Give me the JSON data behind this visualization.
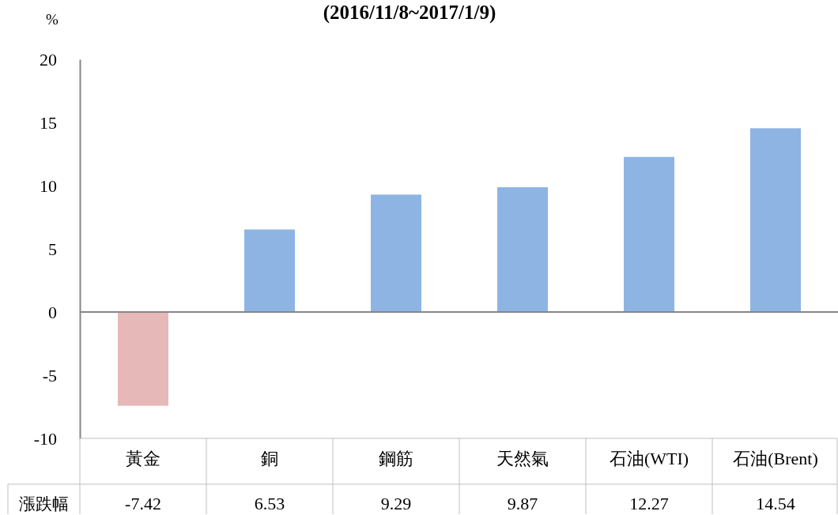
{
  "chart_data": {
    "type": "bar",
    "title": "(2016/11/8~2017/1/9)",
    "ylabel": "%",
    "categories": [
      "黃金",
      "銅",
      "鋼筋",
      "天然氣",
      "石油(WTI)",
      "石油(Brent)"
    ],
    "series": [
      {
        "name": "漲跌幅",
        "colors": [
          "#e6b9b8",
          "#8eb4e3",
          "#8eb4e3",
          "#8eb4e3",
          "#8eb4e3",
          "#8eb4e3"
        ],
        "values": [
          -7.42,
          6.53,
          9.29,
          9.87,
          12.27,
          14.54
        ]
      }
    ],
    "ylim": [
      -10,
      20
    ],
    "yticks": [
      -10,
      -5,
      0,
      5,
      10,
      15,
      20
    ],
    "data_labels": true
  }
}
